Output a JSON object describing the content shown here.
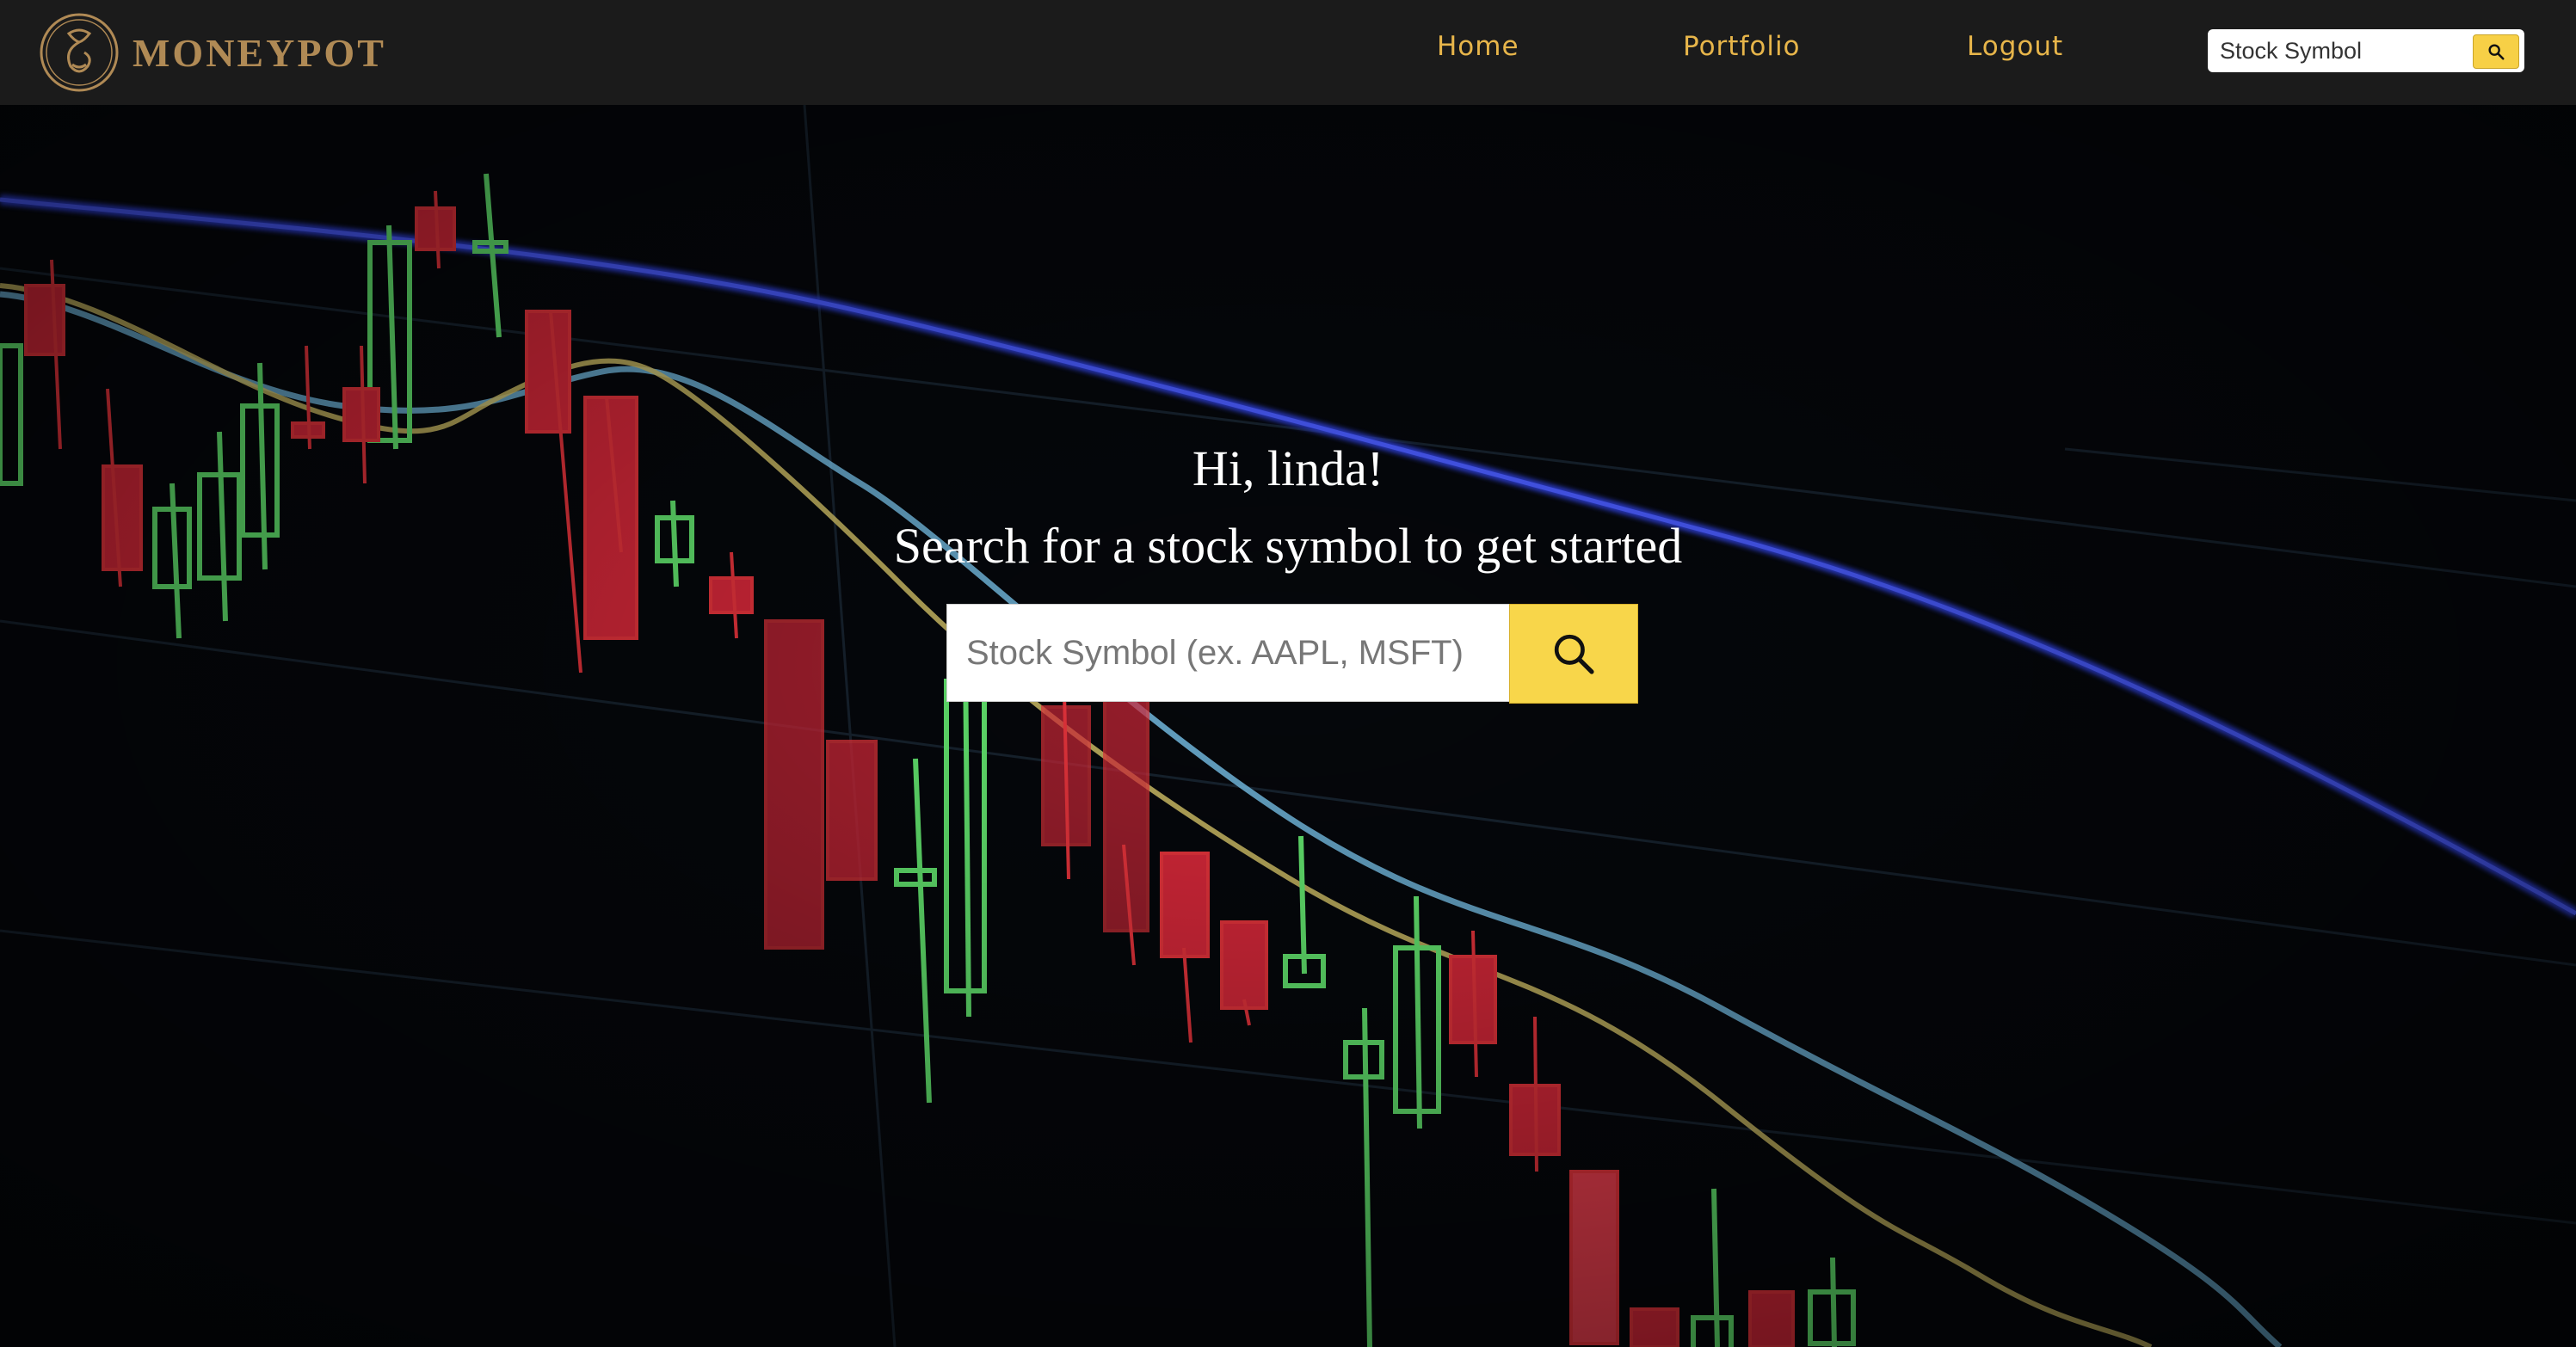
{
  "brand": {
    "name": "MONEYPOT",
    "logo_icon": "moneypot-logo-icon"
  },
  "nav": {
    "links": [
      "Home",
      "Portfolio",
      "Logout"
    ],
    "search": {
      "placeholder": "Stock Symbol",
      "button_icon": "search-icon"
    }
  },
  "hero": {
    "greeting": "Hi, linda!",
    "subtitle": "Search for a stock symbol to get started",
    "search": {
      "placeholder": "Stock Symbol (ex. AAPL, MSFT)",
      "button_icon": "search-icon"
    }
  },
  "colors": {
    "navbar_bg": "#1b1b1b",
    "nav_link": "#e7b54a",
    "brand": "#b08a55",
    "accent_button": "#f8d64a",
    "candle_up": "#6cf07a",
    "candle_down": "#e8343c",
    "line_blue": "#3b4ff0",
    "line_cyan": "#7cc7ee",
    "line_yellow": "#e8e070"
  }
}
